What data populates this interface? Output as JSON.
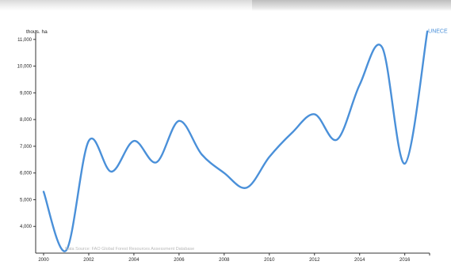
{
  "chart_data": {
    "type": "line",
    "unit_label": "thous. ha",
    "x_ticks": [
      "2000",
      "2002",
      "2004",
      "2006",
      "2008",
      "2010",
      "2012",
      "2014",
      "2016"
    ],
    "y_ticks": [
      "4,000",
      "5,000",
      "6,000",
      "7,000",
      "8,000",
      "9,000",
      "10,000",
      "11,000"
    ],
    "xlim": [
      2000,
      2017.1
    ],
    "ylim": [
      3000,
      11350
    ],
    "series": [
      {
        "name": "UNECE",
        "color": "#4a90d9",
        "x": [
          2000,
          2001,
          2002,
          2003,
          2004,
          2005,
          2006,
          2007,
          2008,
          2009,
          2010,
          2011,
          2012,
          2013,
          2014,
          2015,
          2016,
          2017
        ],
        "values": [
          5300,
          3100,
          7200,
          6050,
          7200,
          6400,
          7950,
          6700,
          6000,
          5450,
          6600,
          7500,
          8200,
          7250,
          9300,
          10700,
          6350,
          11300
        ]
      }
    ],
    "source": "Data Source: FAO Global Forest Resources Assessment Database"
  }
}
